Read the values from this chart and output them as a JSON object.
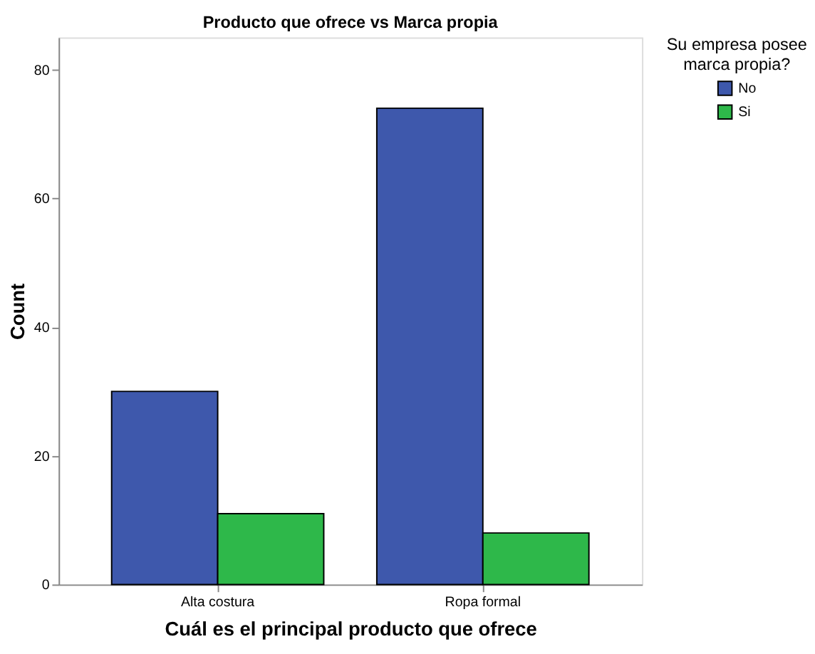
{
  "chart_data": {
    "type": "bar",
    "title": "Producto que ofrece vs Marca propia",
    "xlabel": "Cuál es el principal producto que ofrece",
    "ylabel": "Count",
    "legend_title": "Su empresa posee marca propia?",
    "categories": [
      "Alta costura",
      "Ropa formal"
    ],
    "series": [
      {
        "name": "No",
        "color": "#3e58ac",
        "values": [
          30,
          74
        ]
      },
      {
        "name": "Si",
        "color": "#2eb84a",
        "values": [
          11,
          8
        ]
      }
    ],
    "ylim": [
      0,
      85
    ],
    "yticks": [
      0,
      20,
      40,
      60,
      80
    ],
    "grid": false,
    "legend": "top right"
  }
}
